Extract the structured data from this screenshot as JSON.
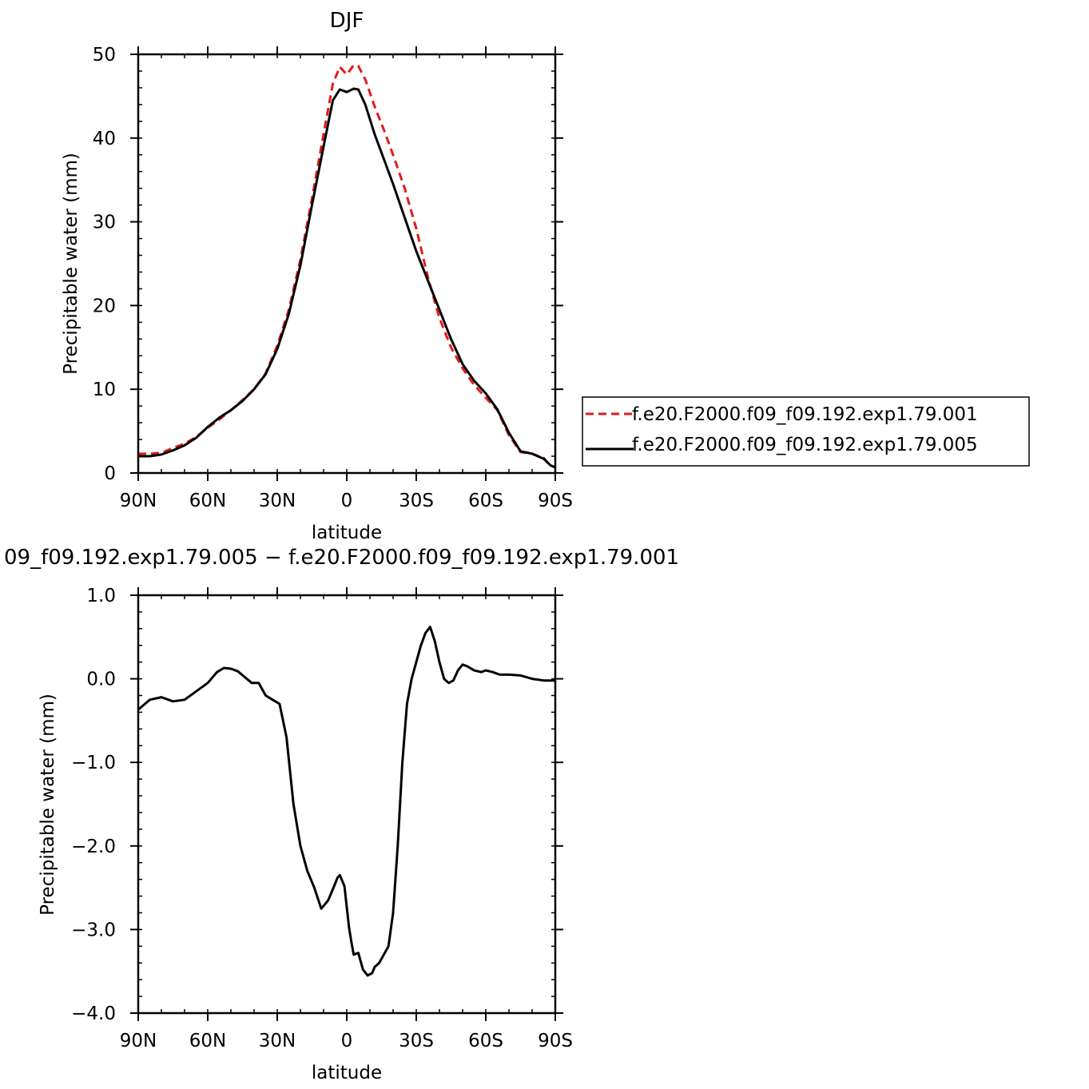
{
  "chart_data": [
    {
      "type": "line",
      "title": "DJF",
      "xlabel": "latitude",
      "ylabel": "Precipitable water (mm)",
      "xlim": [
        -90,
        90
      ],
      "ylim": [
        0,
        50
      ],
      "x_ticks": [
        {
          "value": -90,
          "label": "90N"
        },
        {
          "value": -60,
          "label": "60N"
        },
        {
          "value": -30,
          "label": "30N"
        },
        {
          "value": 0,
          "label": "0"
        },
        {
          "value": 30,
          "label": "30S"
        },
        {
          "value": 60,
          "label": "60S"
        },
        {
          "value": 90,
          "label": "90S"
        }
      ],
      "y_ticks": [
        {
          "value": 0,
          "label": "0"
        },
        {
          "value": 10,
          "label": "10"
        },
        {
          "value": 20,
          "label": "20"
        },
        {
          "value": 30,
          "label": "30"
        },
        {
          "value": 40,
          "label": "40"
        },
        {
          "value": 50,
          "label": "50"
        }
      ],
      "legend_position": "right",
      "series": [
        {
          "name": "f.e20.F2000.f09_f09.192.exp1.79.001",
          "color": "#e41a1c",
          "dash": "dashed",
          "x": [
            -90,
            -85,
            -80,
            -75,
            -70,
            -65,
            -60,
            -55,
            -50,
            -45,
            -40,
            -35,
            -30,
            -25,
            -20,
            -15,
            -10,
            -6,
            -3,
            0,
            3,
            5,
            8,
            12,
            16,
            20,
            25,
            30,
            35,
            40,
            45,
            50,
            55,
            60,
            65,
            70,
            75,
            80,
            85,
            88,
            90
          ],
          "y": [
            2.3,
            2.3,
            2.4,
            3.0,
            3.5,
            4.3,
            5.4,
            6.4,
            7.5,
            8.7,
            10.0,
            11.9,
            15.2,
            19.5,
            25.5,
            32.8,
            40.5,
            46.5,
            48.5,
            47.6,
            48.7,
            48.6,
            47.0,
            43.8,
            41.0,
            38.0,
            34.0,
            29.2,
            23.4,
            18.5,
            15.0,
            12.5,
            10.5,
            9.0,
            7.5,
            4.5,
            2.5,
            2.3,
            1.8,
            0.8,
            0.7
          ]
        },
        {
          "name": "f.e20.F2000.f09_f09.192.exp1.79.005",
          "color": "#000000",
          "dash": "solid",
          "x": [
            -90,
            -85,
            -80,
            -75,
            -70,
            -65,
            -60,
            -55,
            -50,
            -45,
            -40,
            -35,
            -30,
            -25,
            -20,
            -15,
            -10,
            -6,
            -3,
            0,
            3,
            5,
            8,
            12,
            16,
            20,
            25,
            30,
            35,
            40,
            45,
            50,
            55,
            60,
            65,
            70,
            75,
            80,
            85,
            88,
            90
          ],
          "y": [
            2.0,
            2.0,
            2.2,
            2.7,
            3.3,
            4.2,
            5.5,
            6.6,
            7.5,
            8.6,
            10.0,
            11.8,
            14.8,
            19.0,
            24.8,
            32.0,
            39.0,
            44.5,
            45.8,
            45.5,
            45.9,
            45.8,
            44.0,
            40.5,
            37.5,
            34.5,
            30.5,
            26.5,
            23.0,
            19.5,
            16.0,
            13.0,
            11.0,
            9.5,
            7.6,
            4.8,
            2.6,
            2.3,
            1.7,
            0.9,
            0.7
          ]
        }
      ]
    },
    {
      "type": "line",
      "title": "09_f09.192.exp1.79.005 − f.e20.F2000.f09_f09.192.exp1.79.001",
      "xlabel": "latitude",
      "ylabel": "Precipitable water (mm)",
      "xlim": [
        -90,
        90
      ],
      "ylim": [
        -4.0,
        1.0
      ],
      "x_ticks": [
        {
          "value": -90,
          "label": "90N"
        },
        {
          "value": -60,
          "label": "60N"
        },
        {
          "value": -30,
          "label": "30N"
        },
        {
          "value": 0,
          "label": "0"
        },
        {
          "value": 30,
          "label": "30S"
        },
        {
          "value": 60,
          "label": "60S"
        },
        {
          "value": 90,
          "label": "90S"
        }
      ],
      "y_ticks": [
        {
          "value": -4.0,
          "label": "−4.0"
        },
        {
          "value": -3.0,
          "label": "−3.0"
        },
        {
          "value": -2.0,
          "label": "−2.0"
        },
        {
          "value": -1.0,
          "label": "−1.0"
        },
        {
          "value": 0.0,
          "label": "0.0"
        },
        {
          "value": 1.0,
          "label": "1.0"
        }
      ],
      "series": [
        {
          "color": "#000000",
          "dash": "solid",
          "x": [
            -90,
            -85,
            -80,
            -75,
            -70,
            -65,
            -60,
            -56,
            -53,
            -50,
            -47,
            -44,
            -41,
            -38,
            -35,
            -32,
            -29,
            -26,
            -23,
            -20,
            -17,
            -14,
            -11,
            -8,
            -5,
            -4,
            -3,
            -1,
            1,
            2,
            3,
            5,
            7,
            9,
            11,
            12,
            14,
            16,
            18,
            20,
            22,
            24,
            26,
            28,
            30,
            32,
            34,
            36,
            38,
            40,
            42,
            44,
            46,
            48,
            50,
            52,
            55,
            58,
            60,
            63,
            66,
            70,
            75,
            80,
            85,
            90
          ],
          "y": [
            -0.37,
            -0.25,
            -0.22,
            -0.27,
            -0.25,
            -0.15,
            -0.05,
            0.08,
            0.13,
            0.12,
            0.09,
            0.02,
            -0.05,
            -0.05,
            -0.2,
            -0.25,
            -0.3,
            -0.7,
            -1.5,
            -2.0,
            -2.3,
            -2.5,
            -2.75,
            -2.65,
            -2.45,
            -2.38,
            -2.35,
            -2.48,
            -2.98,
            -3.15,
            -3.3,
            -3.28,
            -3.48,
            -3.55,
            -3.52,
            -3.45,
            -3.4,
            -3.3,
            -3.2,
            -2.8,
            -2.0,
            -1.0,
            -0.3,
            0.0,
            0.2,
            0.4,
            0.55,
            0.62,
            0.45,
            0.2,
            0.0,
            -0.05,
            -0.02,
            0.1,
            0.17,
            0.15,
            0.1,
            0.08,
            0.1,
            0.08,
            0.05,
            0.05,
            0.04,
            0.0,
            -0.02,
            -0.02
          ]
        }
      ]
    }
  ]
}
